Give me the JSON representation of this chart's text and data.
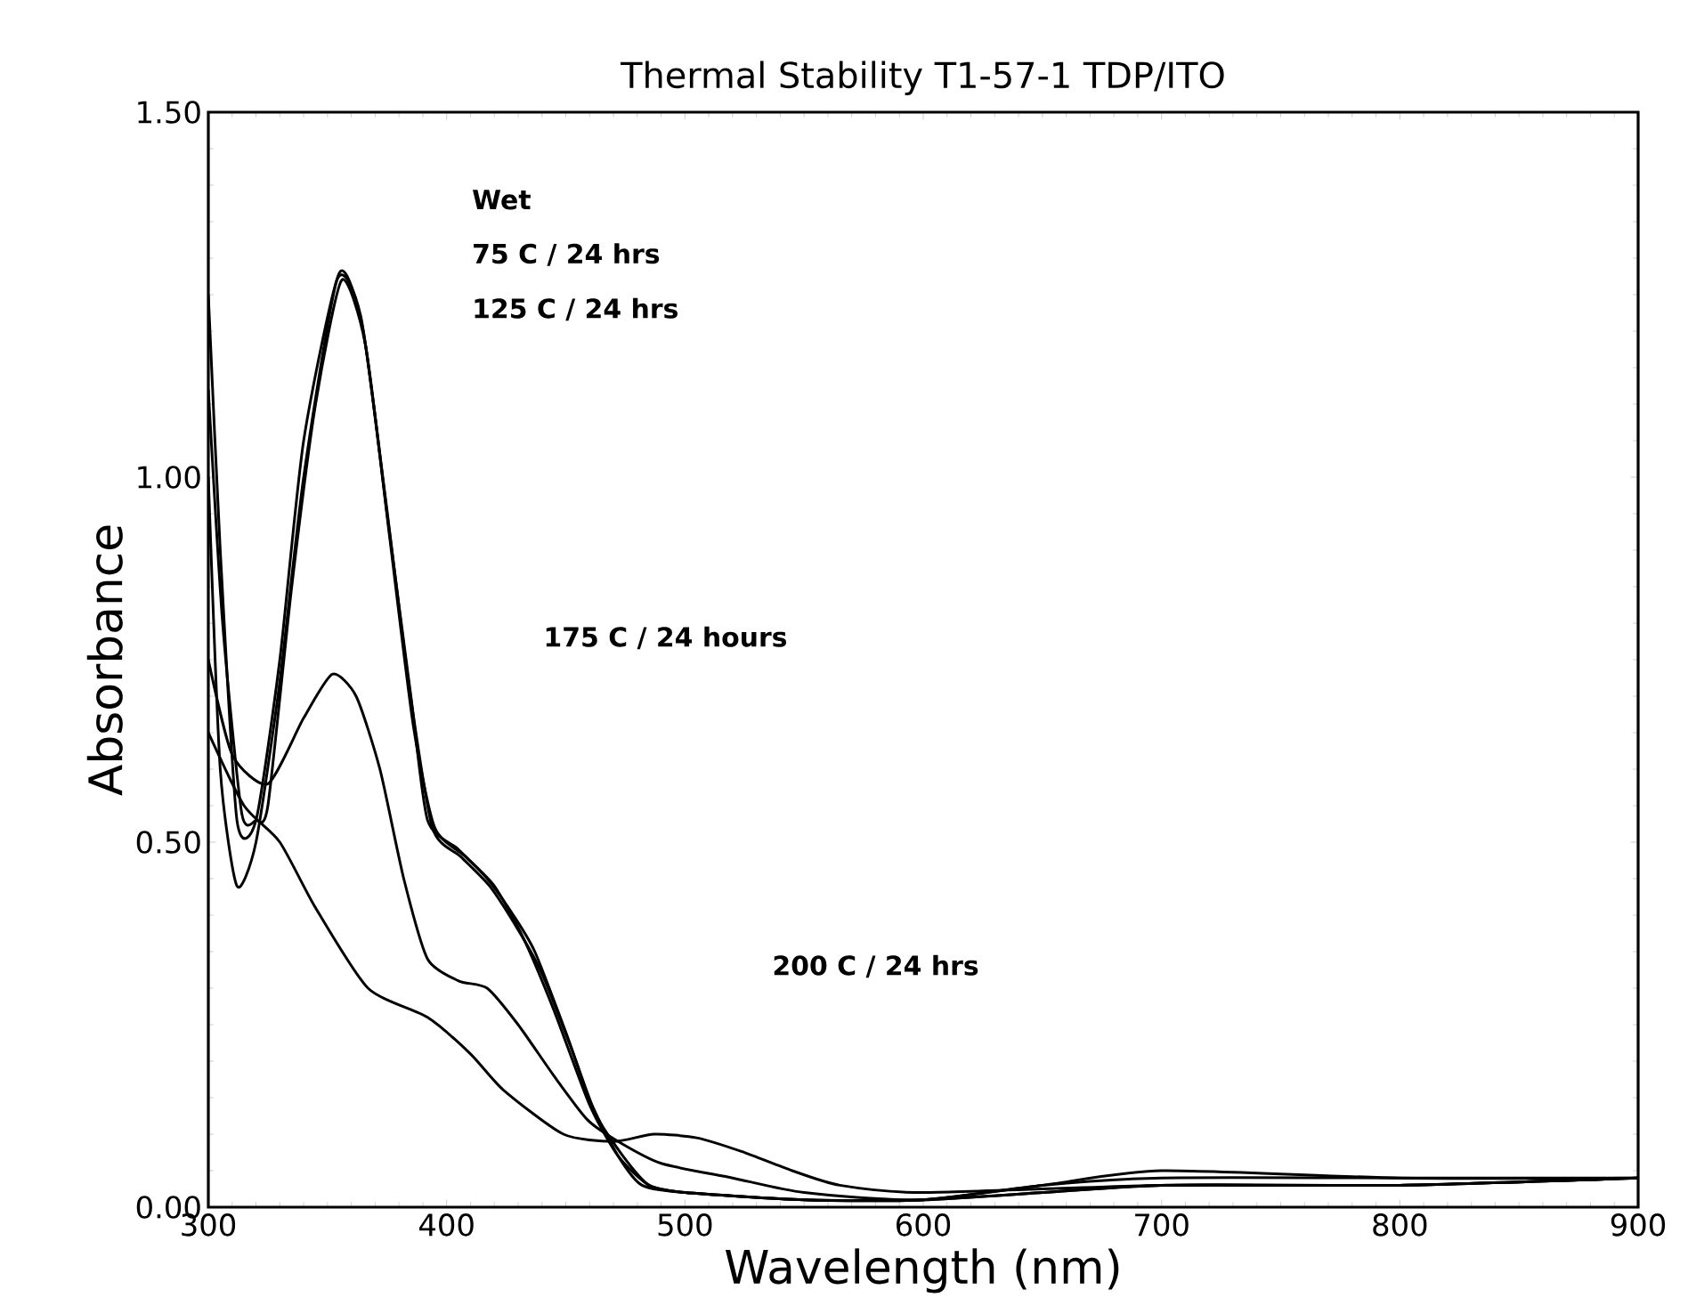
{
  "chart_data": {
    "type": "line",
    "title": "Thermal Stability T1-57-1 TDP/ITO",
    "xlabel": "Wavelength (nm)",
    "ylabel": "Absorbance",
    "xlim": [
      300,
      900
    ],
    "xticks": [
      300,
      400,
      500,
      600,
      700,
      800,
      900
    ],
    "ylim": [
      0,
      1.5
    ],
    "yticks": [
      {
        "value": 0,
        "label": "0.00"
      },
      {
        "value": 0.5,
        "label": "0.50"
      },
      {
        "value": 1.0,
        "label": "1.00"
      },
      {
        "value": 1.5,
        "label": "1.50"
      }
    ],
    "grid": false,
    "marker": "none",
    "line_style": "solid",
    "series": [
      {
        "color": "#000000",
        "x": [
          300,
          305,
          312,
          320,
          330,
          340,
          355,
          365,
          375,
          385,
          392,
          405,
          417,
          428,
          437,
          450,
          461,
          472,
          482,
          500,
          550,
          600,
          650,
          700,
          800,
          900
        ],
        "values": [
          1.25,
          0.9,
          0.53,
          0.53,
          0.75,
          1.05,
          1.28,
          1.2,
          0.95,
          0.7,
          0.53,
          0.49,
          0.45,
          0.4,
          0.35,
          0.24,
          0.14,
          0.07,
          0.03,
          0.02,
          0.01,
          0.01,
          0.03,
          0.04,
          0.04,
          0.04
        ]
      },
      {
        "color": "#000000",
        "x": [
          300,
          306,
          314,
          320,
          325,
          335,
          345,
          356,
          366,
          376,
          386,
          395,
          408,
          420,
          432,
          445,
          460,
          472,
          485,
          500,
          550,
          600,
          650,
          700,
          800,
          900
        ],
        "values": [
          1.12,
          0.8,
          0.54,
          0.53,
          0.55,
          0.85,
          1.1,
          1.27,
          1.18,
          0.92,
          0.66,
          0.52,
          0.48,
          0.44,
          0.37,
          0.27,
          0.14,
          0.07,
          0.03,
          0.02,
          0.01,
          0.01,
          0.03,
          0.05,
          0.04,
          0.04
        ]
      },
      {
        "color": "#000000",
        "x": [
          300,
          305,
          312,
          320,
          330,
          340,
          354,
          364,
          374,
          384,
          394,
          406,
          418,
          430,
          440,
          452,
          462,
          474,
          485,
          500,
          550,
          600,
          650,
          700,
          800,
          900
        ],
        "values": [
          1.0,
          0.6,
          0.44,
          0.5,
          0.72,
          1.0,
          1.27,
          1.22,
          0.98,
          0.72,
          0.52,
          0.48,
          0.44,
          0.38,
          0.32,
          0.22,
          0.13,
          0.07,
          0.03,
          0.02,
          0.01,
          0.01,
          0.02,
          0.03,
          0.03,
          0.04
        ]
      },
      {
        "color": "#000000",
        "x": [
          300,
          310,
          325,
          340,
          352,
          362,
          372,
          382,
          392,
          405,
          417,
          430,
          445,
          459,
          472,
          490,
          520,
          550,
          600,
          700,
          800,
          900
        ],
        "values": [
          0.75,
          0.62,
          0.58,
          0.67,
          0.73,
          0.7,
          0.6,
          0.45,
          0.34,
          0.31,
          0.3,
          0.25,
          0.18,
          0.12,
          0.09,
          0.06,
          0.04,
          0.02,
          0.01,
          0.03,
          0.03,
          0.04
        ]
      },
      {
        "color": "#000000",
        "x": [
          300,
          315,
          330,
          345,
          367,
          392,
          410,
          424,
          449,
          470,
          487,
          505,
          524,
          545,
          565,
          600,
          700,
          800,
          900
        ],
        "values": [
          0.65,
          0.55,
          0.5,
          0.41,
          0.3,
          0.26,
          0.21,
          0.16,
          0.1,
          0.09,
          0.1,
          0.095,
          0.076,
          0.05,
          0.03,
          0.02,
          0.03,
          0.03,
          0.04
        ]
      }
    ],
    "annotations": [
      "Wet",
      "75 C / 24 hrs",
      "125 C / 24 hrs",
      "175 C / 24 hours",
      "200 C / 24 hrs"
    ]
  }
}
